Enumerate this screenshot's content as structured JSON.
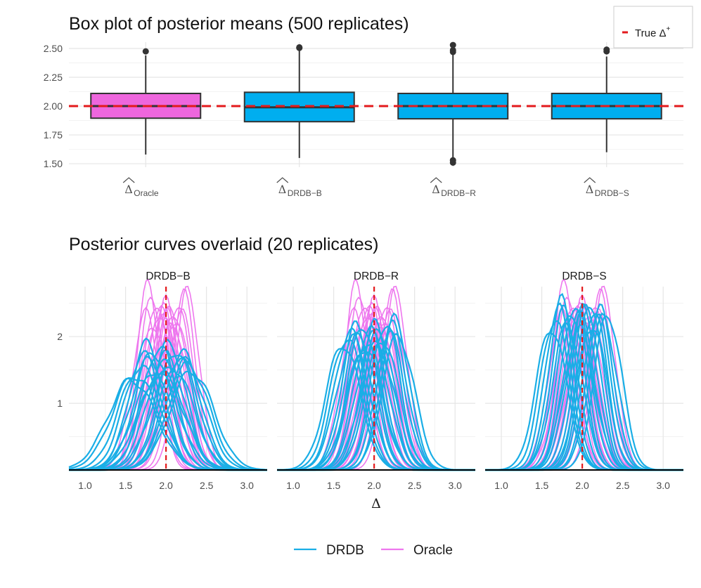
{
  "chart_data": [
    {
      "type": "box",
      "title": "Box plot of posterior means (500 replicates)",
      "xlabel": "",
      "ylabel": "",
      "ylim": [
        1.47,
        2.555
      ],
      "yticks": [
        "1.50",
        "1.75",
        "2.00",
        "2.25",
        "2.50"
      ],
      "ytick_values": [
        1.5,
        1.75,
        2.0,
        2.25,
        2.5
      ],
      "grid": true,
      "categories": [
        {
          "hat": "Δ",
          "sub": "Oracle",
          "fill": "#ee66dd",
          "q1": 1.895,
          "median": 2.0,
          "q3": 2.11,
          "whisker_low": 1.58,
          "whisker_high": 2.44,
          "outliers": [
            2.475
          ]
        },
        {
          "hat": "Δ",
          "sub": "DRDB−B",
          "fill": "#00aeef",
          "q1": 1.865,
          "median": 1.99,
          "q3": 2.12,
          "whisker_low": 1.55,
          "whisker_high": 2.49,
          "outliers": [
            2.505,
            2.51
          ]
        },
        {
          "hat": "Δ",
          "sub": "DRDB−R",
          "fill": "#00aeef",
          "q1": 1.89,
          "median": 2.0,
          "q3": 2.11,
          "whisker_low": 1.55,
          "whisker_high": 2.45,
          "outliers": [
            2.47,
            2.485,
            2.53,
            1.53,
            1.51
          ]
        },
        {
          "hat": "Δ",
          "sub": "DRDB−S",
          "fill": "#00aeef",
          "q1": 1.89,
          "median": 2.0,
          "q3": 2.11,
          "whisker_low": 1.6,
          "whisker_high": 2.43,
          "outliers": [
            2.475,
            2.49
          ]
        }
      ],
      "reference_line": {
        "value": 2.0,
        "color": "#e31a1c",
        "label": "True Δ",
        "label_sup": "+"
      },
      "legend_position": "top-right"
    },
    {
      "type": "line",
      "title": "Posterior curves overlaid (20 replicates)",
      "xlabel": "Δ",
      "ylabel": "",
      "xlim": [
        0.8,
        3.25
      ],
      "ylim": [
        0,
        2.75
      ],
      "xticks": [
        "1.0",
        "1.5",
        "2.0",
        "2.5",
        "3.0"
      ],
      "xtick_values": [
        1.0,
        1.5,
        2.0,
        2.5,
        3.0
      ],
      "yticks": [
        "1",
        "2"
      ],
      "ytick_values": [
        1,
        2
      ],
      "grid": true,
      "reference_line": {
        "value": 2.0,
        "color": "#e31a1c"
      },
      "panels": [
        "DRDB−B",
        "DRDB−R",
        "DRDB−S"
      ],
      "replicates": 20,
      "series": [
        {
          "name": "Oracle",
          "color": "#ee77ee",
          "curves": [
            {
              "center": 1.78,
              "peak": 2.75
            },
            {
              "center": 1.83,
              "peak": 2.62
            },
            {
              "center": 1.88,
              "peak": 2.55
            },
            {
              "center": 1.92,
              "peak": 2.48
            },
            {
              "center": 1.96,
              "peak": 2.42
            },
            {
              "center": 2.0,
              "peak": 2.5
            },
            {
              "center": 2.03,
              "peak": 2.36
            },
            {
              "center": 2.06,
              "peak": 2.45
            },
            {
              "center": 2.1,
              "peak": 2.4
            },
            {
              "center": 2.14,
              "peak": 2.52
            },
            {
              "center": 2.18,
              "peak": 2.38
            },
            {
              "center": 2.22,
              "peak": 2.6
            },
            {
              "center": 2.27,
              "peak": 2.67
            },
            {
              "center": 1.75,
              "peak": 2.32
            },
            {
              "center": 1.85,
              "peak": 2.2
            },
            {
              "center": 1.95,
              "peak": 2.28
            },
            {
              "center": 2.08,
              "peak": 2.25
            },
            {
              "center": 2.12,
              "peak": 2.3
            },
            {
              "center": 1.9,
              "peak": 2.35
            },
            {
              "center": 2.0,
              "peak": 2.18
            }
          ]
        },
        {
          "name": "DRDB",
          "color": "#1aaee6",
          "panel_curves": [
            [
              {
                "center": 1.62,
                "peak": 1.42
              },
              {
                "center": 1.68,
                "peak": 1.55
              },
              {
                "center": 1.72,
                "peak": 1.72
              },
              {
                "center": 1.76,
                "peak": 1.88
              },
              {
                "center": 1.8,
                "peak": 1.65
              },
              {
                "center": 1.84,
                "peak": 1.78
              },
              {
                "center": 1.88,
                "peak": 1.5
              },
              {
                "center": 1.92,
                "peak": 1.85
              },
              {
                "center": 1.96,
                "peak": 1.6
              },
              {
                "center": 2.0,
                "peak": 1.72
              },
              {
                "center": 2.04,
                "peak": 1.9
              },
              {
                "center": 2.08,
                "peak": 1.55
              },
              {
                "center": 2.12,
                "peak": 1.8
              },
              {
                "center": 2.16,
                "peak": 1.68
              },
              {
                "center": 2.2,
                "peak": 1.75
              },
              {
                "center": 2.24,
                "peak": 1.62
              },
              {
                "center": 2.28,
                "peak": 1.58
              },
              {
                "center": 1.58,
                "peak": 1.35
              },
              {
                "center": 2.32,
                "peak": 1.48
              },
              {
                "center": 1.94,
                "peak": 1.45
              }
            ],
            [
              {
                "center": 1.66,
                "peak": 2.0
              },
              {
                "center": 1.7,
                "peak": 2.08
              },
              {
                "center": 1.74,
                "peak": 1.95
              },
              {
                "center": 1.78,
                "peak": 2.15
              },
              {
                "center": 1.82,
                "peak": 2.05
              },
              {
                "center": 1.86,
                "peak": 2.2
              },
              {
                "center": 1.9,
                "peak": 1.92
              },
              {
                "center": 1.94,
                "peak": 2.12
              },
              {
                "center": 1.98,
                "peak": 2.0
              },
              {
                "center": 2.02,
                "peak": 2.18
              },
              {
                "center": 2.06,
                "peak": 2.1
              },
              {
                "center": 2.1,
                "peak": 1.98
              },
              {
                "center": 2.14,
                "peak": 2.22
              },
              {
                "center": 2.18,
                "peak": 2.05
              },
              {
                "center": 2.22,
                "peak": 2.15
              },
              {
                "center": 2.26,
                "peak": 2.25
              },
              {
                "center": 2.3,
                "peak": 2.02
              },
              {
                "center": 1.62,
                "peak": 1.9
              },
              {
                "center": 1.88,
                "peak": 1.85
              },
              {
                "center": 2.04,
                "peak": 1.88
              }
            ],
            [
              {
                "center": 1.66,
                "peak": 2.3
              },
              {
                "center": 1.7,
                "peak": 2.45
              },
              {
                "center": 1.74,
                "peak": 2.52
              },
              {
                "center": 1.78,
                "peak": 2.38
              },
              {
                "center": 1.82,
                "peak": 2.2
              },
              {
                "center": 1.86,
                "peak": 2.42
              },
              {
                "center": 1.9,
                "peak": 2.5
              },
              {
                "center": 1.94,
                "peak": 2.35
              },
              {
                "center": 1.98,
                "peak": 2.28
              },
              {
                "center": 2.02,
                "peak": 2.4
              },
              {
                "center": 2.06,
                "peak": 2.48
              },
              {
                "center": 2.1,
                "peak": 2.55
              },
              {
                "center": 2.14,
                "peak": 2.42
              },
              {
                "center": 2.18,
                "peak": 2.3
              },
              {
                "center": 2.22,
                "peak": 2.38
              },
              {
                "center": 2.26,
                "peak": 2.25
              },
              {
                "center": 2.32,
                "peak": 2.35
              },
              {
                "center": 1.62,
                "peak": 2.15
              },
              {
                "center": 1.96,
                "peak": 2.1
              },
              {
                "center": 2.12,
                "peak": 2.2
              }
            ]
          ]
        }
      ],
      "legend": {
        "position": "bottom",
        "entries": [
          "DRDB",
          "Oracle"
        ]
      }
    }
  ]
}
